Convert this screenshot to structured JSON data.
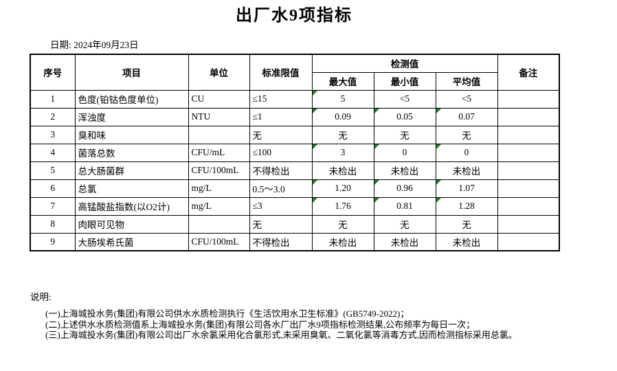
{
  "title": "出厂水9项指标",
  "date_label": "日期: 2024年09月23日",
  "table": {
    "headers": {
      "index": "序号",
      "item": "项目",
      "unit": "单位",
      "standard_limit": "标准限值",
      "detection_value": "检测值",
      "max": "最大值",
      "min": "最小值",
      "avg": "平均值",
      "remark": "备注"
    },
    "rows": [
      {
        "index": "1",
        "item": "色度(铂钴色度单位)",
        "unit": "CU",
        "limit": "≤15",
        "max": "5",
        "min": "<5",
        "avg": "<5",
        "remark": "",
        "flags": [
          "max"
        ]
      },
      {
        "index": "2",
        "item": "浑浊度",
        "unit": "NTU",
        "limit": "≤1",
        "max": "0.09",
        "min": "0.05",
        "avg": "0.07",
        "remark": "",
        "flags": [
          "max",
          "min",
          "avg"
        ]
      },
      {
        "index": "3",
        "item": "臭和味",
        "unit": "",
        "limit": "无",
        "max": "无",
        "min": "无",
        "avg": "无",
        "remark": "",
        "flags": []
      },
      {
        "index": "4",
        "item": "菌落总数",
        "unit": "CFU/mL",
        "limit": "≤100",
        "max": "3",
        "min": "0",
        "avg": "0",
        "remark": "",
        "flags": [
          "max",
          "min",
          "avg"
        ]
      },
      {
        "index": "5",
        "item": "总大肠菌群",
        "unit": "CFU/100mL",
        "limit": "不得检出",
        "max": "未检出",
        "min": "未检出",
        "avg": "未检出",
        "remark": "",
        "flags": []
      },
      {
        "index": "6",
        "item": "总氯",
        "unit": "mg/L",
        "limit": "0.5～3.0",
        "max": "1.20",
        "min": "0.96",
        "avg": "1.07",
        "remark": "",
        "flags": [
          "max",
          "min",
          "avg"
        ]
      },
      {
        "index": "7",
        "item": "高锰酸盐指数(以O2计)",
        "unit": "mg/L",
        "limit": "≤3",
        "max": "1.76",
        "min": "0.81",
        "avg": "1.28",
        "remark": "",
        "flags": [
          "max",
          "min",
          "avg"
        ]
      },
      {
        "index": "8",
        "item": "肉眼可见物",
        "unit": "",
        "limit": "无",
        "max": "无",
        "min": "无",
        "avg": "无",
        "remark": "",
        "flags": []
      },
      {
        "index": "9",
        "item": "大肠埃希氏菌",
        "unit": "CFU/100mL",
        "limit": "不得检出",
        "max": "未检出",
        "min": "未检出",
        "avg": "未检出",
        "remark": "",
        "flags": []
      }
    ]
  },
  "notes": {
    "heading": "说明:",
    "lines": [
      "(一)上海城投水务(集团)有限公司供水水质检测执行《生活饮用水卫生标准》(GB5749-2022)；",
      "(二)上述供水水质检测值系上海城投水务(集团)有限公司各水厂出厂水9项指标检测结果,公布频率为每日一次；",
      "(三)上海城投水务(集团)有限公司出厂水余氯采用化合氯形式,未采用臭氧、二氧化氯等消毒方式,因而检测指标采用总氯。"
    ]
  },
  "colors": {
    "flag_triangle": "#1f7d1f",
    "border": "#000000",
    "text": "#000000",
    "background": "#ffffff"
  }
}
